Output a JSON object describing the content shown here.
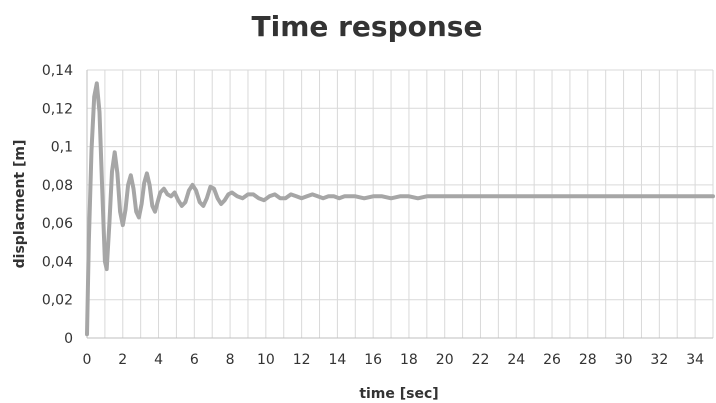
{
  "chart_data": {
    "type": "line",
    "title": "Time response",
    "xlabel": "time [sec]",
    "ylabel": "displacment [m]",
    "xlim": [
      0,
      35
    ],
    "ylim": [
      0,
      0.14
    ],
    "x_ticks": [
      0,
      2,
      4,
      6,
      8,
      10,
      12,
      14,
      16,
      18,
      20,
      22,
      24,
      26,
      28,
      30,
      32,
      34
    ],
    "x_tick_labels": [
      "0",
      "2",
      "4",
      "6",
      "8",
      "10",
      "12",
      "14",
      "16",
      "18",
      "20",
      "22",
      "24",
      "26",
      "28",
      "30",
      "32",
      "34"
    ],
    "y_ticks": [
      0,
      0.02,
      0.04,
      0.06,
      0.08,
      0.1,
      0.12,
      0.14
    ],
    "y_tick_labels": [
      "0",
      "0,02",
      "0,04",
      "0,06",
      "0,08",
      "0,1",
      "0,12",
      "0,14"
    ],
    "grid": true,
    "legend": "none",
    "series": [
      {
        "color": "#a6a6a6",
        "x": [
          0,
          0.1,
          0.25,
          0.4,
          0.55,
          0.7,
          0.85,
          1.0,
          1.1,
          1.25,
          1.4,
          1.55,
          1.7,
          1.85,
          2.0,
          2.15,
          2.3,
          2.45,
          2.6,
          2.75,
          2.9,
          3.05,
          3.2,
          3.35,
          3.5,
          3.65,
          3.8,
          3.95,
          4.1,
          4.3,
          4.5,
          4.7,
          4.9,
          5.1,
          5.3,
          5.5,
          5.7,
          5.9,
          6.1,
          6.3,
          6.5,
          6.7,
          6.9,
          7.1,
          7.3,
          7.5,
          7.7,
          7.9,
          8.1,
          8.4,
          8.7,
          9.0,
          9.3,
          9.6,
          9.9,
          10.2,
          10.5,
          10.8,
          11.1,
          11.4,
          11.7,
          12.0,
          12.3,
          12.6,
          12.9,
          13.2,
          13.5,
          13.8,
          14.1,
          14.4,
          14.7,
          15.0,
          15.5,
          16.0,
          16.5,
          17.0,
          17.5,
          18.0,
          18.5,
          19.0,
          20.0,
          22.0,
          25.0,
          28.0,
          31.0,
          35.0
        ],
        "y": [
          0.002,
          0.05,
          0.098,
          0.126,
          0.133,
          0.118,
          0.078,
          0.04,
          0.036,
          0.06,
          0.087,
          0.097,
          0.086,
          0.066,
          0.059,
          0.067,
          0.08,
          0.085,
          0.078,
          0.066,
          0.063,
          0.07,
          0.081,
          0.086,
          0.08,
          0.069,
          0.066,
          0.071,
          0.076,
          0.078,
          0.075,
          0.074,
          0.076,
          0.072,
          0.069,
          0.071,
          0.077,
          0.08,
          0.077,
          0.071,
          0.069,
          0.073,
          0.079,
          0.078,
          0.073,
          0.07,
          0.072,
          0.075,
          0.076,
          0.074,
          0.073,
          0.075,
          0.075,
          0.073,
          0.072,
          0.074,
          0.075,
          0.073,
          0.073,
          0.075,
          0.074,
          0.073,
          0.074,
          0.075,
          0.074,
          0.073,
          0.074,
          0.074,
          0.073,
          0.074,
          0.074,
          0.074,
          0.073,
          0.074,
          0.074,
          0.073,
          0.074,
          0.074,
          0.073,
          0.074,
          0.074,
          0.074,
          0.074,
          0.074,
          0.074,
          0.074
        ]
      }
    ]
  }
}
